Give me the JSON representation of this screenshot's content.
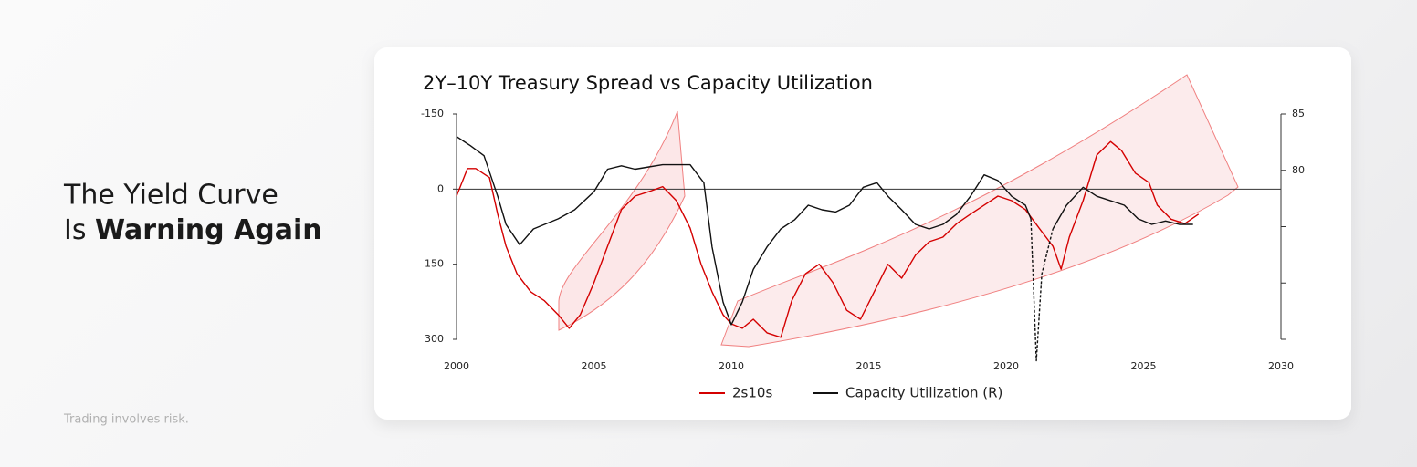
{
  "headline": {
    "line1": "The Yield Curve",
    "line2_prefix": "Is",
    "line2_bold": "Warning Again"
  },
  "disclaimer": "Trading involves risk.",
  "chart_data": {
    "type": "line",
    "title": "2Y–10Y Treasury Spread vs Capacity Utilization",
    "xlim": [
      2000,
      2030
    ],
    "xticks": [
      2000,
      2005,
      2010,
      2015,
      2020,
      2025,
      2030
    ],
    "ylim": [
      -150,
      300
    ],
    "y_inverted": true,
    "yticks": [
      -150,
      0,
      150,
      300
    ],
    "zero_line": true,
    "y2lim": [
      65,
      85
    ],
    "y2ticks": [
      85,
      80
    ],
    "y2minor_ticks": [
      75,
      70,
      65
    ],
    "series": [
      {
        "name": "2s10s",
        "color": "#d40000",
        "x": [
          2000.0,
          2000.4,
          2000.7,
          2001.2,
          2001.5,
          2001.8,
          2002.2,
          2002.7,
          2003.2,
          2003.7,
          2004.1,
          2004.5,
          2005.0,
          2005.5,
          2006.0,
          2006.5,
          2007.0,
          2007.5,
          2008.0,
          2008.5,
          2008.9,
          2009.3,
          2009.7,
          2010.0,
          2010.4,
          2010.8,
          2011.3,
          2011.8,
          2012.2,
          2012.7,
          2013.2,
          2013.7,
          2014.2,
          2014.7,
          2015.2,
          2015.7,
          2016.2,
          2016.7,
          2017.2,
          2017.7,
          2018.2,
          2018.7,
          2019.2,
          2019.7,
          2020.2,
          2020.7,
          2021.2,
          2021.7,
          2022.0,
          2022.3,
          2022.8,
          2023.3,
          2023.8,
          2024.2,
          2024.7,
          2025.2,
          2025.5,
          2026.0,
          2026.5,
          2027.0
        ],
        "values": [
          14,
          -41,
          -41,
          -23,
          50,
          114,
          169,
          205,
          223,
          251,
          278,
          251,
          187,
          114,
          41,
          14,
          5,
          -5,
          23,
          78,
          150,
          205,
          251,
          269,
          278,
          260,
          287,
          296,
          223,
          169,
          150,
          187,
          242,
          260,
          205,
          150,
          178,
          132,
          105,
          96,
          69,
          50,
          32,
          14,
          23,
          41,
          78,
          114,
          160,
          96,
          23,
          -68,
          -95,
          -77,
          -32,
          -13,
          32,
          60,
          69,
          50
        ]
      },
      {
        "name": "Capacity Utilization (R)",
        "color": "#111111",
        "axis": "y2",
        "dashed_range": [
          2020.9,
          2021.7
        ],
        "x": [
          2000.0,
          2000.5,
          2001.0,
          2001.5,
          2001.8,
          2002.3,
          2002.8,
          2003.7,
          2004.3,
          2005.0,
          2005.5,
          2006.0,
          2006.5,
          2007.0,
          2007.5,
          2008.0,
          2008.5,
          2009.0,
          2009.3,
          2009.7,
          2010.0,
          2010.4,
          2010.8,
          2011.3,
          2011.8,
          2012.3,
          2012.8,
          2013.3,
          2013.8,
          2014.3,
          2014.8,
          2015.3,
          2015.7,
          2016.2,
          2016.7,
          2017.2,
          2017.7,
          2018.2,
          2018.7,
          2019.2,
          2019.7,
          2020.2,
          2020.7,
          2020.9,
          2021.1,
          2021.3,
          2021.7,
          2022.2,
          2022.8,
          2023.3,
          2023.8,
          2024.3,
          2024.8,
          2025.3,
          2025.8,
          2026.3,
          2026.8
        ],
        "values": [
          83.0,
          82.2,
          81.3,
          77.7,
          75.2,
          73.4,
          74.8,
          75.7,
          76.5,
          78.1,
          80.1,
          80.4,
          80.1,
          80.3,
          80.5,
          80.5,
          80.5,
          78.9,
          73.2,
          68.3,
          66.3,
          68.3,
          71.2,
          73.2,
          74.8,
          75.6,
          76.9,
          76.5,
          76.3,
          76.9,
          78.5,
          78.9,
          77.7,
          76.5,
          75.2,
          74.8,
          75.2,
          76.1,
          77.7,
          79.6,
          79.1,
          77.7,
          76.9,
          75.7,
          63.1,
          70.8,
          74.8,
          76.9,
          78.5,
          77.7,
          77.3,
          76.9,
          75.7,
          75.2,
          75.5,
          75.2,
          75.2
        ]
      }
    ],
    "legend": "bottom"
  }
}
